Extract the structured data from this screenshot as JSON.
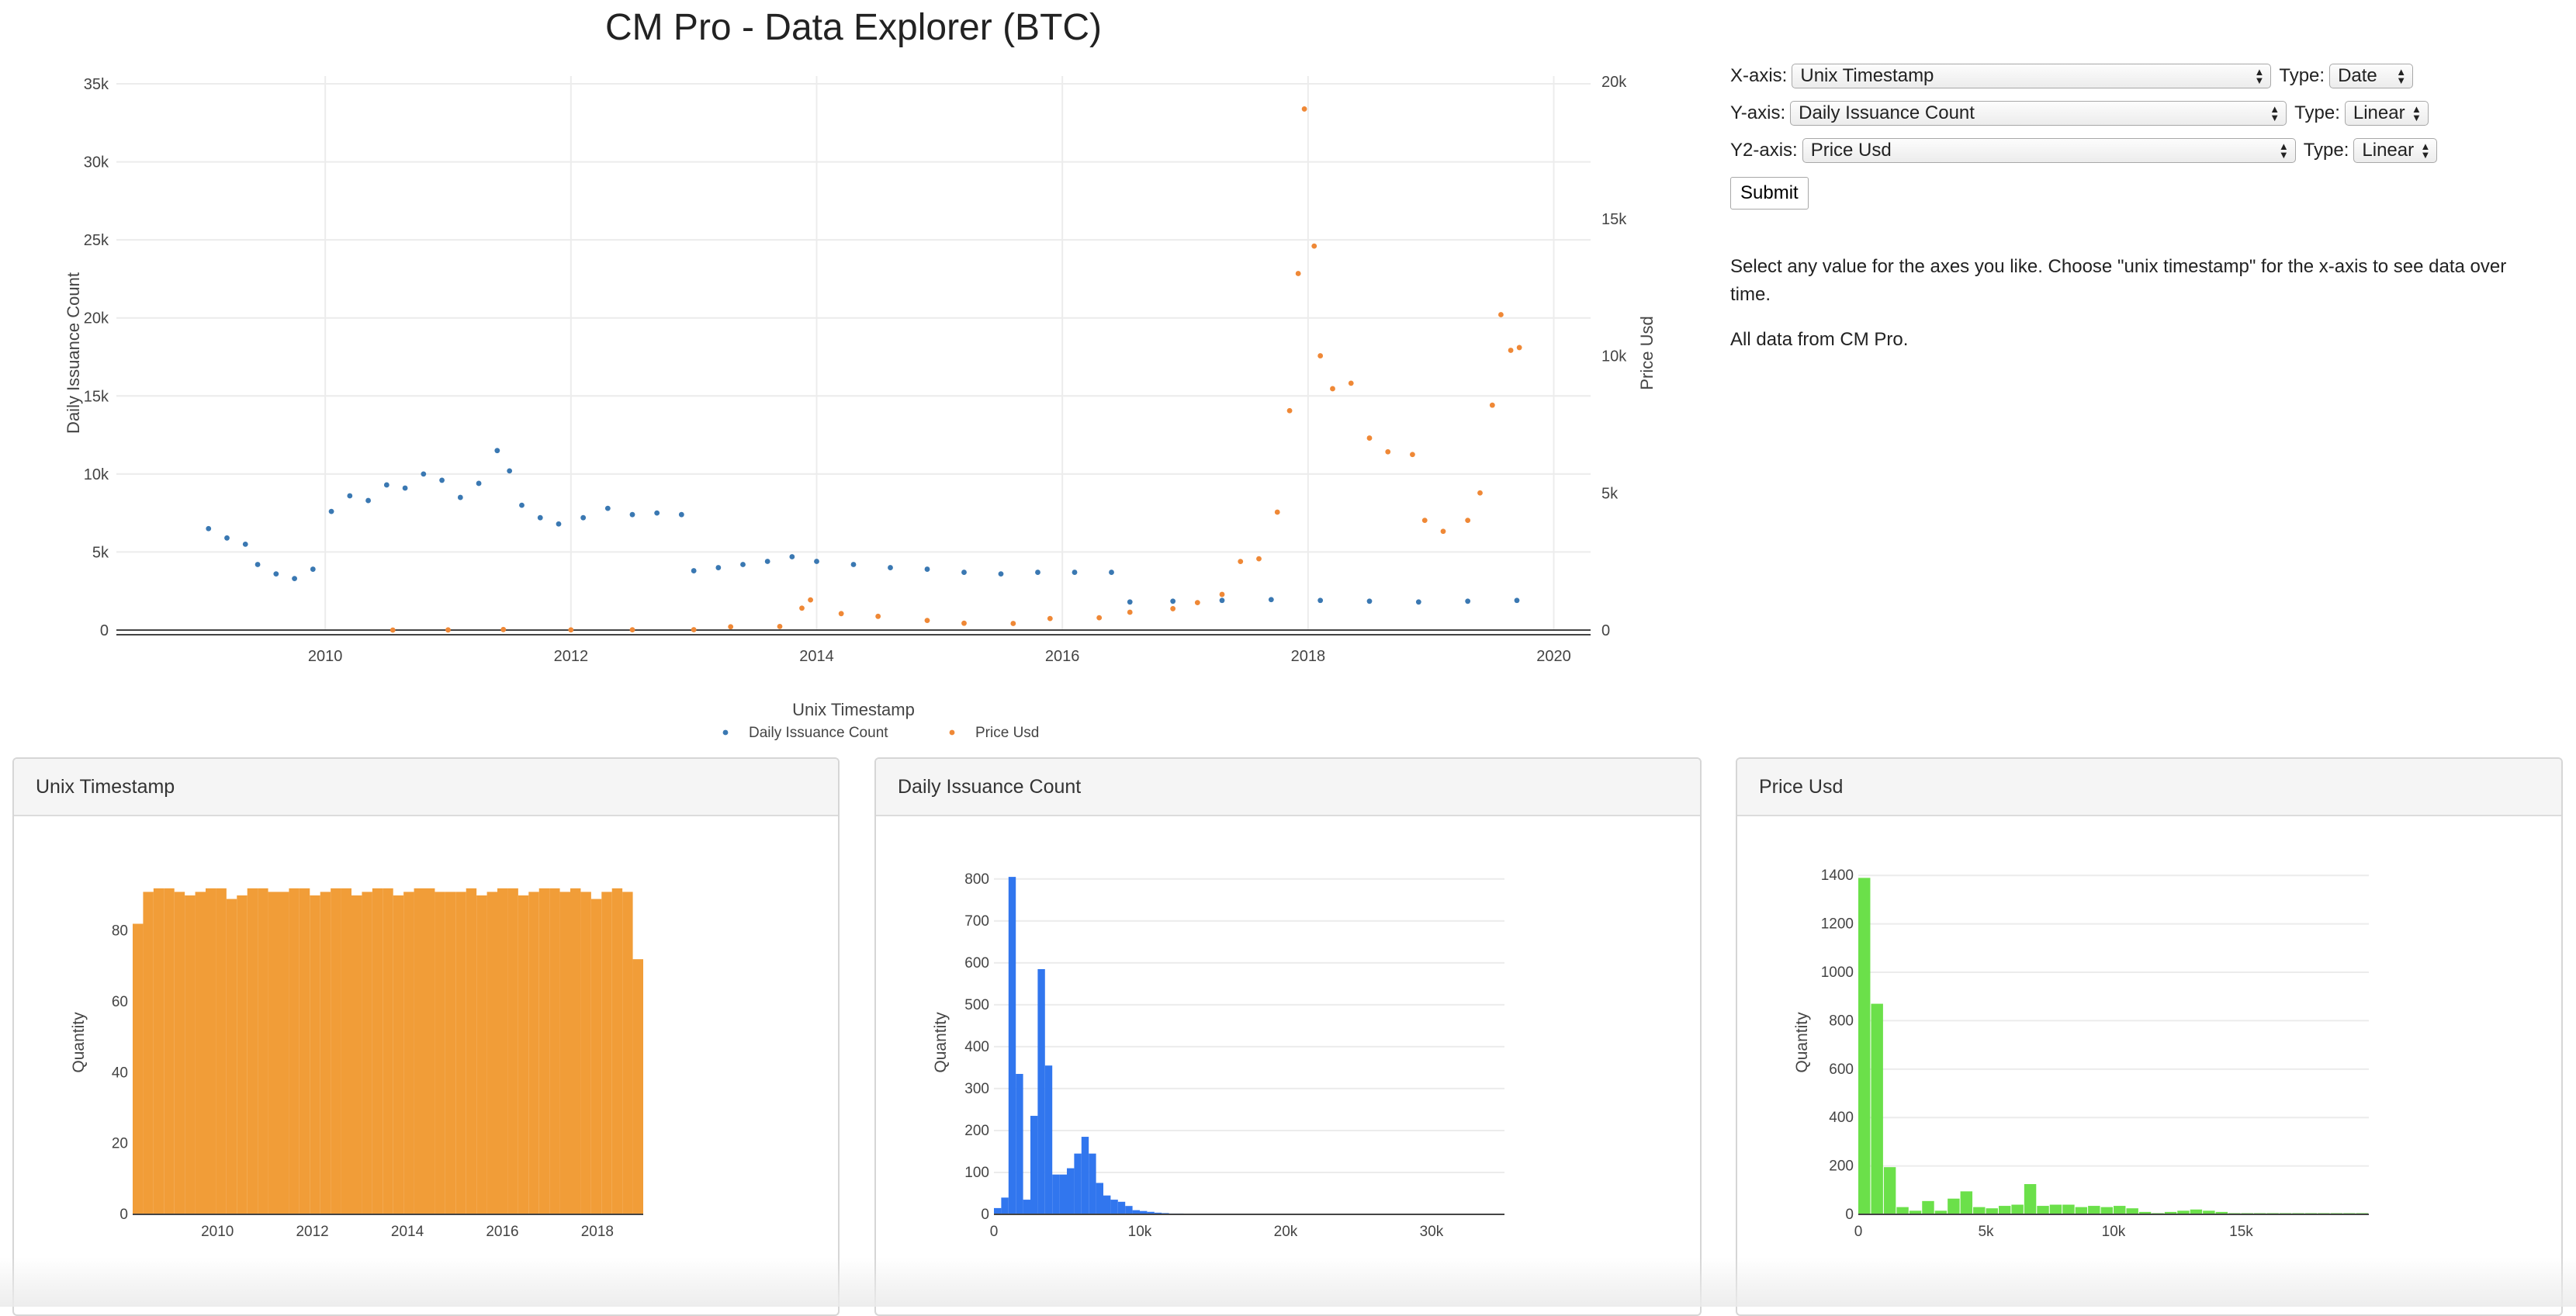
{
  "page": {
    "title": "CM Pro - Data Explorer (BTC)"
  },
  "controls": {
    "x_label": "X-axis:",
    "x_value": "Unix Timestamp",
    "x_type_label": "Type:",
    "x_type": "Date",
    "y_label": "Y-axis:",
    "y_value": "Daily Issuance Count",
    "y_type_label": "Type:",
    "y_type": "Linear",
    "y2_label": "Y2-axis:",
    "y2_value": "Price Usd",
    "y2_type_label": "Type:",
    "y2_type": "Linear",
    "submit": "Submit"
  },
  "info": {
    "line1": "Select any value for the axes you like. Choose \"unix timestamp\" for the x-axis to see data over time.",
    "line2": "All data from CM Pro."
  },
  "colors": {
    "issuance": "#3a78b2",
    "price": "#ef8836",
    "hist_time": "#f19d38",
    "hist_issuance": "#3176ee",
    "hist_price": "#6be04a"
  },
  "panels": {
    "time": "Unix Timestamp",
    "issuance": "Daily Issuance Count",
    "price": "Price Usd"
  },
  "chart_data": [
    {
      "type": "scatter",
      "xlabel": "Unix Timestamp",
      "ylabel": "Daily Issuance Count",
      "y2label": "Price Usd",
      "x_ticks": [
        "2010",
        "2012",
        "2014",
        "2016",
        "2018",
        "2020"
      ],
      "y_ticks": [
        "0",
        "5k",
        "10k",
        "15k",
        "20k",
        "25k",
        "30k",
        "35k"
      ],
      "y2_ticks": [
        "0",
        "5k",
        "10k",
        "15k",
        "20k"
      ],
      "xlim": [
        2008.3,
        2020.3
      ],
      "ylim": [
        0,
        35500
      ],
      "y2lim": [
        0,
        20200
      ],
      "legend": "bottom-center",
      "series": [
        {
          "name": "Daily Issuance Count",
          "axis": "y",
          "points": [
            [
              2009.05,
              6500
            ],
            [
              2009.2,
              5900
            ],
            [
              2009.35,
              5500
            ],
            [
              2009.45,
              4200
            ],
            [
              2009.6,
              3600
            ],
            [
              2009.75,
              3300
            ],
            [
              2009.9,
              3900
            ],
            [
              2010.05,
              7600
            ],
            [
              2010.2,
              8600
            ],
            [
              2010.35,
              8300
            ],
            [
              2010.5,
              9300
            ],
            [
              2010.65,
              9100
            ],
            [
              2010.8,
              10000
            ],
            [
              2010.95,
              9600
            ],
            [
              2011.1,
              8500
            ],
            [
              2011.25,
              9400
            ],
            [
              2011.4,
              11500
            ],
            [
              2011.5,
              10200
            ],
            [
              2011.6,
              8000
            ],
            [
              2011.75,
              7200
            ],
            [
              2011.9,
              6800
            ],
            [
              2012.1,
              7200
            ],
            [
              2012.3,
              7800
            ],
            [
              2012.5,
              7400
            ],
            [
              2012.7,
              7500
            ],
            [
              2012.9,
              7400
            ],
            [
              2013.0,
              3800
            ],
            [
              2013.2,
              4000
            ],
            [
              2013.4,
              4200
            ],
            [
              2013.6,
              4400
            ],
            [
              2013.8,
              4700
            ],
            [
              2014.0,
              4400
            ],
            [
              2014.3,
              4200
            ],
            [
              2014.6,
              4000
            ],
            [
              2014.9,
              3900
            ],
            [
              2015.2,
              3700
            ],
            [
              2015.5,
              3600
            ],
            [
              2015.8,
              3700
            ],
            [
              2016.1,
              3700
            ],
            [
              2016.4,
              3700
            ],
            [
              2016.55,
              1800
            ],
            [
              2016.9,
              1850
            ],
            [
              2017.3,
              1900
            ],
            [
              2017.7,
              1950
            ],
            [
              2018.1,
              1900
            ],
            [
              2018.5,
              1850
            ],
            [
              2018.9,
              1800
            ],
            [
              2019.3,
              1850
            ],
            [
              2019.7,
              1900
            ]
          ]
        },
        {
          "name": "Price Usd",
          "axis": "y2",
          "points": [
            [
              2010.55,
              0
            ],
            [
              2011.0,
              5
            ],
            [
              2011.45,
              20
            ],
            [
              2012.0,
              8
            ],
            [
              2012.5,
              10
            ],
            [
              2013.0,
              14
            ],
            [
              2013.3,
              120
            ],
            [
              2013.7,
              130
            ],
            [
              2013.88,
              800
            ],
            [
              2013.95,
              1100
            ],
            [
              2014.2,
              600
            ],
            [
              2014.5,
              500
            ],
            [
              2014.9,
              350
            ],
            [
              2015.2,
              250
            ],
            [
              2015.6,
              240
            ],
            [
              2015.9,
              420
            ],
            [
              2016.3,
              450
            ],
            [
              2016.55,
              650
            ],
            [
              2016.9,
              780
            ],
            [
              2017.1,
              1000
            ],
            [
              2017.3,
              1300
            ],
            [
              2017.45,
              2500
            ],
            [
              2017.6,
              2600
            ],
            [
              2017.75,
              4300
            ],
            [
              2017.85,
              8000
            ],
            [
              2017.92,
              13000
            ],
            [
              2017.97,
              19000
            ],
            [
              2018.05,
              14000
            ],
            [
              2018.1,
              10000
            ],
            [
              2018.2,
              8800
            ],
            [
              2018.35,
              9000
            ],
            [
              2018.5,
              7000
            ],
            [
              2018.65,
              6500
            ],
            [
              2018.85,
              6400
            ],
            [
              2018.95,
              4000
            ],
            [
              2019.1,
              3600
            ],
            [
              2019.3,
              4000
            ],
            [
              2019.4,
              5000
            ],
            [
              2019.5,
              8200
            ],
            [
              2019.57,
              11500
            ],
            [
              2019.65,
              10200
            ],
            [
              2019.72,
              10300
            ]
          ]
        }
      ]
    },
    {
      "type": "bar",
      "title": "Unix Timestamp",
      "ylabel": "Quantity",
      "x_ticks": [
        "2010",
        "2012",
        "2014",
        "2016",
        "2018"
      ],
      "y_ticks": [
        "0",
        "20",
        "40",
        "60",
        "80"
      ],
      "ylim": [
        0,
        97
      ],
      "values": [
        82,
        91,
        92,
        92,
        91,
        90,
        91,
        92,
        92,
        89,
        90,
        92,
        92,
        91,
        91,
        92,
        92,
        90,
        91,
        92,
        92,
        90,
        91,
        92,
        92,
        90,
        91,
        92,
        92,
        91,
        91,
        91,
        92,
        90,
        91,
        92,
        92,
        90,
        91,
        92,
        92,
        91,
        92,
        91,
        89,
        91,
        92,
        91,
        72
      ]
    },
    {
      "type": "bar",
      "title": "Daily Issuance Count",
      "ylabel": "Quantity",
      "x_ticks": [
        "0",
        "10k",
        "20k",
        "30k"
      ],
      "y_ticks": [
        "0",
        "100",
        "200",
        "300",
        "400",
        "500",
        "600",
        "700",
        "800"
      ],
      "xlim": [
        0,
        35000
      ],
      "ylim": [
        0,
        820
      ],
      "bin_width": 500,
      "values": [
        15,
        40,
        805,
        335,
        35,
        235,
        585,
        355,
        95,
        95,
        110,
        145,
        185,
        145,
        75,
        45,
        35,
        30,
        20,
        10,
        8,
        6,
        4,
        3,
        2,
        2,
        1,
        1,
        1,
        1,
        1,
        1,
        1,
        1,
        1,
        1,
        1,
        1,
        1,
        1,
        1,
        1,
        1,
        1,
        1,
        1,
        1,
        1,
        1,
        1,
        1,
        1,
        1,
        1,
        1,
        1,
        1,
        1,
        1,
        1,
        1,
        1,
        1,
        1,
        1,
        1,
        1,
        1,
        1,
        1
      ]
    },
    {
      "type": "bar",
      "title": "Price Usd",
      "ylabel": "Quantity",
      "x_ticks": [
        "0",
        "5k",
        "10k",
        "15k"
      ],
      "y_ticks": [
        "0",
        "200",
        "400",
        "600",
        "800",
        "1000",
        "1200",
        "1400"
      ],
      "xlim": [
        0,
        20000
      ],
      "ylim": [
        0,
        1420
      ],
      "bin_width": 500,
      "values": [
        1390,
        870,
        195,
        30,
        15,
        55,
        15,
        65,
        95,
        30,
        25,
        35,
        40,
        125,
        35,
        40,
        40,
        30,
        35,
        30,
        35,
        25,
        10,
        5,
        10,
        15,
        20,
        15,
        10,
        5,
        5,
        5,
        5,
        5,
        5,
        5,
        5,
        5,
        5,
        5
      ]
    }
  ]
}
